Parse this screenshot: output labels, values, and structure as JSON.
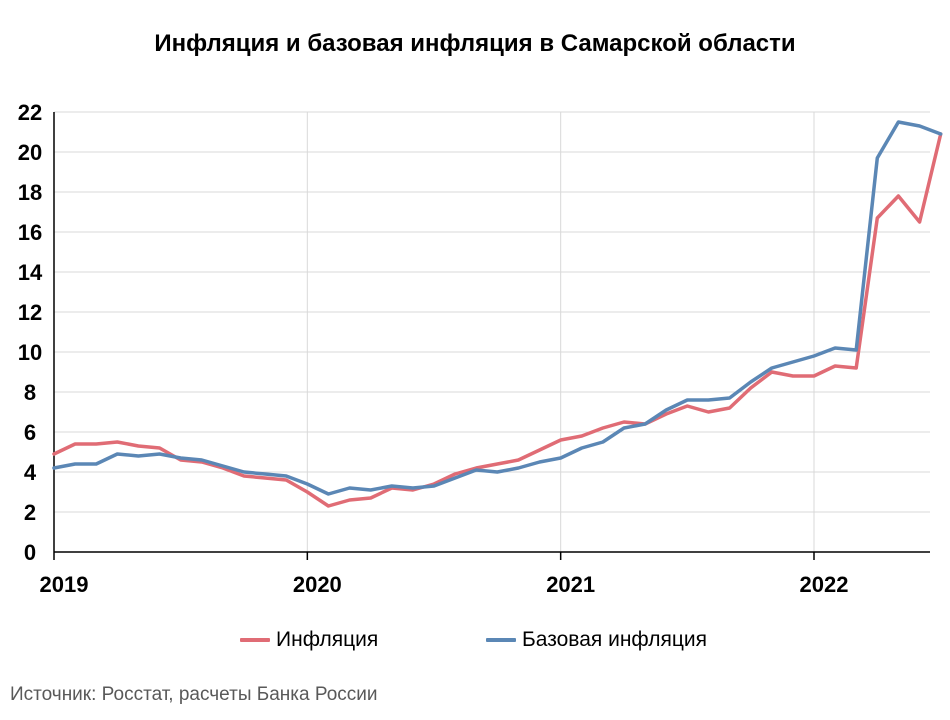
{
  "chart_data": {
    "type": "line",
    "title": "Инфляция и базовая инфляция в Самарской области",
    "xlabel": "",
    "ylabel": "",
    "ylim": [
      0,
      22
    ],
    "yticks": [
      0,
      2,
      4,
      6,
      8,
      10,
      12,
      14,
      16,
      18,
      20,
      22
    ],
    "xticks": [
      "2019",
      "2020",
      "2021",
      "2022"
    ],
    "x_start": "2019-01",
    "x_end": "2022-06",
    "x": [
      "2019-01",
      "2019-02",
      "2019-03",
      "2019-04",
      "2019-05",
      "2019-06",
      "2019-07",
      "2019-08",
      "2019-09",
      "2019-10",
      "2019-11",
      "2019-12",
      "2020-01",
      "2020-02",
      "2020-03",
      "2020-04",
      "2020-05",
      "2020-06",
      "2020-07",
      "2020-08",
      "2020-09",
      "2020-10",
      "2020-11",
      "2020-12",
      "2021-01",
      "2021-02",
      "2021-03",
      "2021-04",
      "2021-05",
      "2021-06",
      "2021-07",
      "2021-08",
      "2021-09",
      "2021-10",
      "2021-11",
      "2021-12",
      "2022-01",
      "2022-02",
      "2022-03",
      "2022-04",
      "2022-05",
      "2022-06"
    ],
    "grid": true,
    "legend_position": "bottom",
    "series": [
      {
        "name": "Инфляция",
        "color": "#E06C75",
        "values": [
          4.9,
          5.4,
          5.4,
          5.5,
          5.3,
          5.2,
          4.6,
          4.5,
          4.2,
          3.8,
          3.7,
          3.6,
          3.0,
          2.3,
          2.6,
          2.7,
          3.2,
          3.1,
          3.4,
          3.9,
          4.2,
          4.4,
          4.6,
          5.1,
          5.6,
          5.8,
          6.2,
          6.5,
          6.4,
          6.9,
          7.3,
          7.0,
          7.2,
          8.2,
          9.0,
          8.8,
          8.8,
          9.3,
          9.2,
          16.7,
          17.8,
          16.5
        ]
      },
      {
        "name": "Базовая инфляция",
        "color": "#5B87B5",
        "values": [
          4.2,
          4.4,
          4.4,
          4.9,
          4.8,
          4.9,
          4.7,
          4.6,
          4.3,
          4.0,
          3.9,
          3.8,
          3.4,
          2.9,
          3.2,
          3.1,
          3.3,
          3.2,
          3.3,
          3.7,
          4.1,
          4.0,
          4.2,
          4.5,
          4.7,
          5.2,
          5.5,
          6.2,
          6.4,
          7.1,
          7.6,
          7.6,
          7.7,
          8.5,
          9.2,
          9.5,
          9.8,
          10.2,
          10.1,
          19.7,
          21.5,
          21.3
        ]
      }
    ],
    "series_extra": [
      [
        20.9
      ],
      [
        20.9
      ]
    ]
  },
  "source": "Источник: Росстат, расчеты Банка России"
}
